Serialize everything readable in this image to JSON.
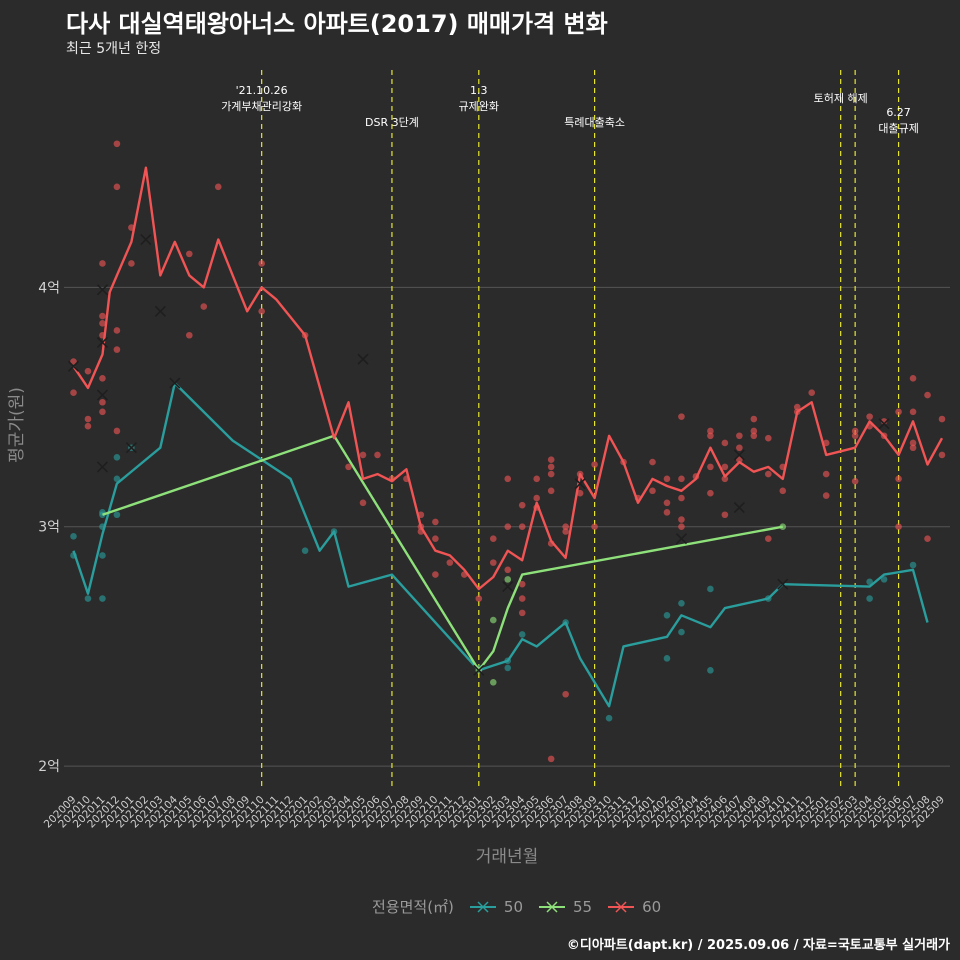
{
  "title": "다사 대실역태왕아너스 아파트(2017) 매매가격 변화",
  "subtitle": "최근 5개년 한정",
  "footer": "©디아파트(dapt.kr) / 2025.09.06 / 자료=국토교통부 실거래가",
  "colors": {
    "background": "#2b2b2b",
    "grid": "#555555",
    "event_line": "#e6e62e",
    "s50": "#2a9d9d",
    "s55": "#8ee07a",
    "s60": "#f05454"
  },
  "legend": {
    "title": "전용면적(㎡)",
    "items": [
      {
        "label": "50",
        "color": "#2a9d9d"
      },
      {
        "label": "55",
        "color": "#8ee07a"
      },
      {
        "label": "60",
        "color": "#f05454"
      }
    ]
  },
  "chart_data": {
    "type": "line",
    "xlabel": "거래년월",
    "ylabel": "평균가(원)",
    "ylim": [
      1.9,
      4.95
    ],
    "yticks": [
      {
        "v": 2,
        "label": "2억"
      },
      {
        "v": 3,
        "label": "3억"
      },
      {
        "v": 4,
        "label": "4억"
      }
    ],
    "grid": true,
    "legend_position": "bottom",
    "categories": [
      "202009",
      "202010",
      "202011",
      "202012",
      "202101",
      "202102",
      "202103",
      "202104",
      "202105",
      "202106",
      "202107",
      "202108",
      "202109",
      "202110",
      "202111",
      "202112",
      "202201",
      "202202",
      "202203",
      "202204",
      "202205",
      "202206",
      "202207",
      "202208",
      "202209",
      "202210",
      "202211",
      "202212",
      "202301",
      "202302",
      "202303",
      "202304",
      "202305",
      "202306",
      "202307",
      "202308",
      "202309",
      "202310",
      "202311",
      "202312",
      "202401",
      "202402",
      "202403",
      "202404",
      "202405",
      "202406",
      "202407",
      "202408",
      "202409",
      "202410",
      "202411",
      "202412",
      "202501",
      "202502",
      "202503",
      "202504",
      "202505",
      "202506",
      "202507",
      "202508",
      "202509"
    ],
    "events": [
      {
        "at": 13,
        "label": "'21.10.26\n가계부채관리강화",
        "row": 0
      },
      {
        "at": 22,
        "label": "DSR 3단계",
        "row": 2
      },
      {
        "at": 28,
        "label": "1.3\n규제완화",
        "row": 0
      },
      {
        "at": 36,
        "label": "특례대출축소",
        "row": 2
      },
      {
        "at": 53,
        "label": "토허제 해제",
        "row": 1
      },
      {
        "at": 54,
        "label": "",
        "row": 1
      },
      {
        "at": 57,
        "label": "6.27\n대출규제",
        "row": 2
      }
    ],
    "series": [
      {
        "name": "50",
        "color": "#2a9d9d",
        "line": [
          [
            0,
            2.9
          ],
          [
            1,
            2.72
          ],
          [
            2,
            2.97
          ],
          [
            3,
            3.18
          ],
          [
            6,
            3.33
          ],
          [
            7,
            3.6
          ],
          [
            11,
            3.36
          ],
          [
            13,
            3.28
          ],
          [
            15,
            3.2
          ],
          [
            17,
            2.9
          ],
          [
            18,
            2.98
          ],
          [
            19,
            2.75
          ],
          [
            22,
            2.8
          ],
          [
            28,
            2.4
          ],
          [
            29,
            2.42
          ],
          [
            30,
            2.44
          ],
          [
            31,
            2.53
          ],
          [
            32,
            2.5
          ],
          [
            34,
            2.6
          ],
          [
            35,
            2.45
          ],
          [
            37,
            2.25
          ],
          [
            38,
            2.5
          ],
          [
            41,
            2.54
          ],
          [
            42,
            2.63
          ],
          [
            44,
            2.58
          ],
          [
            45,
            2.66
          ],
          [
            48,
            2.7
          ],
          [
            49,
            2.76
          ],
          [
            55,
            2.75
          ],
          [
            56,
            2.8
          ],
          [
            58,
            2.82
          ],
          [
            59,
            2.6
          ]
        ],
        "points": [
          [
            0,
            2.96
          ],
          [
            0,
            2.88
          ],
          [
            1,
            2.7
          ],
          [
            2,
            2.7
          ],
          [
            2,
            2.88
          ],
          [
            2,
            3.0
          ],
          [
            2,
            3.06
          ],
          [
            2,
            3.05
          ],
          [
            3,
            3.05
          ],
          [
            3,
            3.2
          ],
          [
            3,
            3.29
          ],
          [
            4,
            3.33
          ],
          [
            16,
            2.9
          ],
          [
            18,
            2.98
          ],
          [
            28,
            2.41
          ],
          [
            30,
            2.41
          ],
          [
            30,
            2.44
          ],
          [
            31,
            2.55
          ],
          [
            34,
            2.6
          ],
          [
            37,
            2.2
          ],
          [
            41,
            2.45
          ],
          [
            41,
            2.63
          ],
          [
            42,
            2.56
          ],
          [
            42,
            2.68
          ],
          [
            44,
            2.4
          ],
          [
            44,
            2.74
          ],
          [
            48,
            2.7
          ],
          [
            55,
            2.77
          ],
          [
            55,
            2.7
          ],
          [
            56,
            2.78
          ],
          [
            58,
            2.84
          ]
        ],
        "crosses": [
          [
            4,
            3.33
          ],
          [
            7,
            3.6
          ],
          [
            49,
            2.76
          ]
        ]
      },
      {
        "name": "55",
        "color": "#8ee07a",
        "line": [
          [
            2,
            3.05
          ],
          [
            18,
            3.38
          ],
          [
            28,
            2.4
          ],
          [
            29,
            2.48
          ],
          [
            30,
            2.66
          ],
          [
            31,
            2.8
          ],
          [
            49,
            3.0
          ]
        ],
        "points": [
          [
            28,
            2.4
          ],
          [
            29,
            2.61
          ],
          [
            29,
            2.35
          ],
          [
            30,
            2.78
          ],
          [
            49,
            3.0
          ]
        ],
        "crosses": [
          [
            28,
            2.4
          ]
        ]
      },
      {
        "name": "60",
        "color": "#f05454",
        "line": [
          [
            0,
            3.67
          ],
          [
            1,
            3.58
          ],
          [
            2,
            3.72
          ],
          [
            2.5,
            3.98
          ],
          [
            3,
            4.05
          ],
          [
            4,
            4.19
          ],
          [
            5,
            4.5
          ],
          [
            6,
            4.05
          ],
          [
            7,
            4.19
          ],
          [
            8,
            4.05
          ],
          [
            9,
            4.0
          ],
          [
            10,
            4.2
          ],
          [
            11,
            4.05
          ],
          [
            12,
            3.9
          ],
          [
            13,
            4.0
          ],
          [
            14,
            3.95
          ],
          [
            16,
            3.8
          ],
          [
            18,
            3.37
          ],
          [
            19,
            3.52
          ],
          [
            20,
            3.2
          ],
          [
            21,
            3.22
          ],
          [
            22,
            3.19
          ],
          [
            23,
            3.24
          ],
          [
            24,
            3.0
          ],
          [
            25,
            2.9
          ],
          [
            26,
            2.88
          ],
          [
            27,
            2.82
          ],
          [
            28,
            2.74
          ],
          [
            29,
            2.79
          ],
          [
            30,
            2.9
          ],
          [
            31,
            2.86
          ],
          [
            32,
            3.1
          ],
          [
            33,
            2.94
          ],
          [
            34,
            2.87
          ],
          [
            35,
            3.22
          ],
          [
            36,
            3.12
          ],
          [
            37,
            3.38
          ],
          [
            38,
            3.27
          ],
          [
            39,
            3.1
          ],
          [
            40,
            3.2
          ],
          [
            41,
            3.17
          ],
          [
            42,
            3.15
          ],
          [
            43,
            3.2
          ],
          [
            44,
            3.33
          ],
          [
            45,
            3.21
          ],
          [
            46,
            3.27
          ],
          [
            47,
            3.23
          ],
          [
            48,
            3.25
          ],
          [
            49,
            3.2
          ],
          [
            50,
            3.48
          ],
          [
            51,
            3.52
          ],
          [
            52,
            3.3
          ],
          [
            54,
            3.33
          ],
          [
            55,
            3.44
          ],
          [
            56,
            3.38
          ],
          [
            57,
            3.3
          ],
          [
            58,
            3.44
          ],
          [
            59,
            3.26
          ],
          [
            60,
            3.37
          ]
        ],
        "points": [
          [
            0,
            3.69
          ],
          [
            0,
            3.56
          ],
          [
            1,
            3.65
          ],
          [
            1,
            3.45
          ],
          [
            1,
            3.42
          ],
          [
            2,
            4.1
          ],
          [
            2,
            3.88
          ],
          [
            2,
            3.85
          ],
          [
            2,
            3.8
          ],
          [
            2,
            3.62
          ],
          [
            2,
            3.52
          ],
          [
            2,
            3.48
          ],
          [
            3,
            4.42
          ],
          [
            3,
            4.6
          ],
          [
            3,
            3.82
          ],
          [
            3,
            3.74
          ],
          [
            3,
            3.4
          ],
          [
            4,
            4.25
          ],
          [
            4,
            4.1
          ],
          [
            9,
            3.92
          ],
          [
            8,
            3.8
          ],
          [
            8,
            4.14
          ],
          [
            10,
            4.42
          ],
          [
            13,
            4.1
          ],
          [
            13,
            3.9
          ],
          [
            16,
            3.8
          ],
          [
            19,
            3.25
          ],
          [
            20,
            3.3
          ],
          [
            20,
            3.1
          ],
          [
            21,
            3.3
          ],
          [
            22,
            3.2
          ],
          [
            23,
            3.2
          ],
          [
            24,
            3.05
          ],
          [
            24,
            3.0
          ],
          [
            24,
            2.98
          ],
          [
            25,
            2.95
          ],
          [
            25,
            3.02
          ],
          [
            25,
            2.8
          ],
          [
            26,
            2.85
          ],
          [
            27,
            2.8
          ],
          [
            28,
            2.7
          ],
          [
            29,
            2.85
          ],
          [
            29,
            2.95
          ],
          [
            30,
            3.0
          ],
          [
            30,
            3.2
          ],
          [
            30,
            2.82
          ],
          [
            31,
            3.09
          ],
          [
            31,
            3.0
          ],
          [
            31,
            2.76
          ],
          [
            31,
            2.7
          ],
          [
            31,
            2.64
          ],
          [
            32,
            3.08
          ],
          [
            32,
            3.12
          ],
          [
            32,
            3.2
          ],
          [
            33,
            3.28
          ],
          [
            33,
            3.25
          ],
          [
            33,
            3.22
          ],
          [
            33,
            3.15
          ],
          [
            33,
            2.93
          ],
          [
            33,
            2.03
          ],
          [
            34,
            3.0
          ],
          [
            34,
            2.98
          ],
          [
            34,
            2.3
          ],
          [
            35,
            3.22
          ],
          [
            35,
            3.14
          ],
          [
            36,
            3.26
          ],
          [
            36,
            3.0
          ],
          [
            38,
            3.27
          ],
          [
            39,
            3.12
          ],
          [
            40,
            3.15
          ],
          [
            40,
            3.27
          ],
          [
            41,
            3.1
          ],
          [
            41,
            3.2
          ],
          [
            41,
            3.06
          ],
          [
            42,
            3.46
          ],
          [
            42,
            3.12
          ],
          [
            42,
            3.2
          ],
          [
            42,
            3.03
          ],
          [
            42,
            3.0
          ],
          [
            43,
            3.21
          ],
          [
            44,
            3.4
          ],
          [
            44,
            3.38
          ],
          [
            44,
            3.25
          ],
          [
            44,
            3.14
          ],
          [
            45,
            3.35
          ],
          [
            45,
            3.25
          ],
          [
            45,
            3.2
          ],
          [
            45,
            3.05
          ],
          [
            46,
            3.38
          ],
          [
            46,
            3.33
          ],
          [
            46,
            3.28
          ],
          [
            47,
            3.45
          ],
          [
            47,
            3.4
          ],
          [
            47,
            3.38
          ],
          [
            48,
            3.37
          ],
          [
            48,
            3.22
          ],
          [
            48,
            2.95
          ],
          [
            49,
            3.25
          ],
          [
            49,
            3.15
          ],
          [
            50,
            3.5
          ],
          [
            50,
            3.48
          ],
          [
            51,
            3.56
          ],
          [
            52,
            3.35
          ],
          [
            52,
            3.22
          ],
          [
            52,
            3.13
          ],
          [
            54,
            3.4
          ],
          [
            54,
            3.38
          ],
          [
            54,
            3.19
          ],
          [
            55,
            3.46
          ],
          [
            55,
            3.42
          ],
          [
            56,
            3.44
          ],
          [
            56,
            3.38
          ],
          [
            57,
            3.48
          ],
          [
            57,
            3.2
          ],
          [
            57,
            3.0
          ],
          [
            58,
            3.62
          ],
          [
            58,
            3.48
          ],
          [
            58,
            3.35
          ],
          [
            58,
            3.33
          ],
          [
            59,
            3.55
          ],
          [
            59,
            2.95
          ],
          [
            60,
            3.45
          ],
          [
            60,
            3.3
          ]
        ],
        "crosses": [
          [
            0,
            3.67
          ],
          [
            2,
            3.99
          ],
          [
            2,
            3.77
          ],
          [
            2,
            3.55
          ],
          [
            2,
            3.25
          ],
          [
            5,
            4.2
          ],
          [
            6,
            3.9
          ],
          [
            20,
            3.7
          ],
          [
            35,
            3.18
          ],
          [
            42,
            2.95
          ],
          [
            46,
            3.3
          ],
          [
            46,
            3.08
          ],
          [
            30,
            2.75
          ],
          [
            56,
            3.43
          ]
        ]
      }
    ]
  }
}
